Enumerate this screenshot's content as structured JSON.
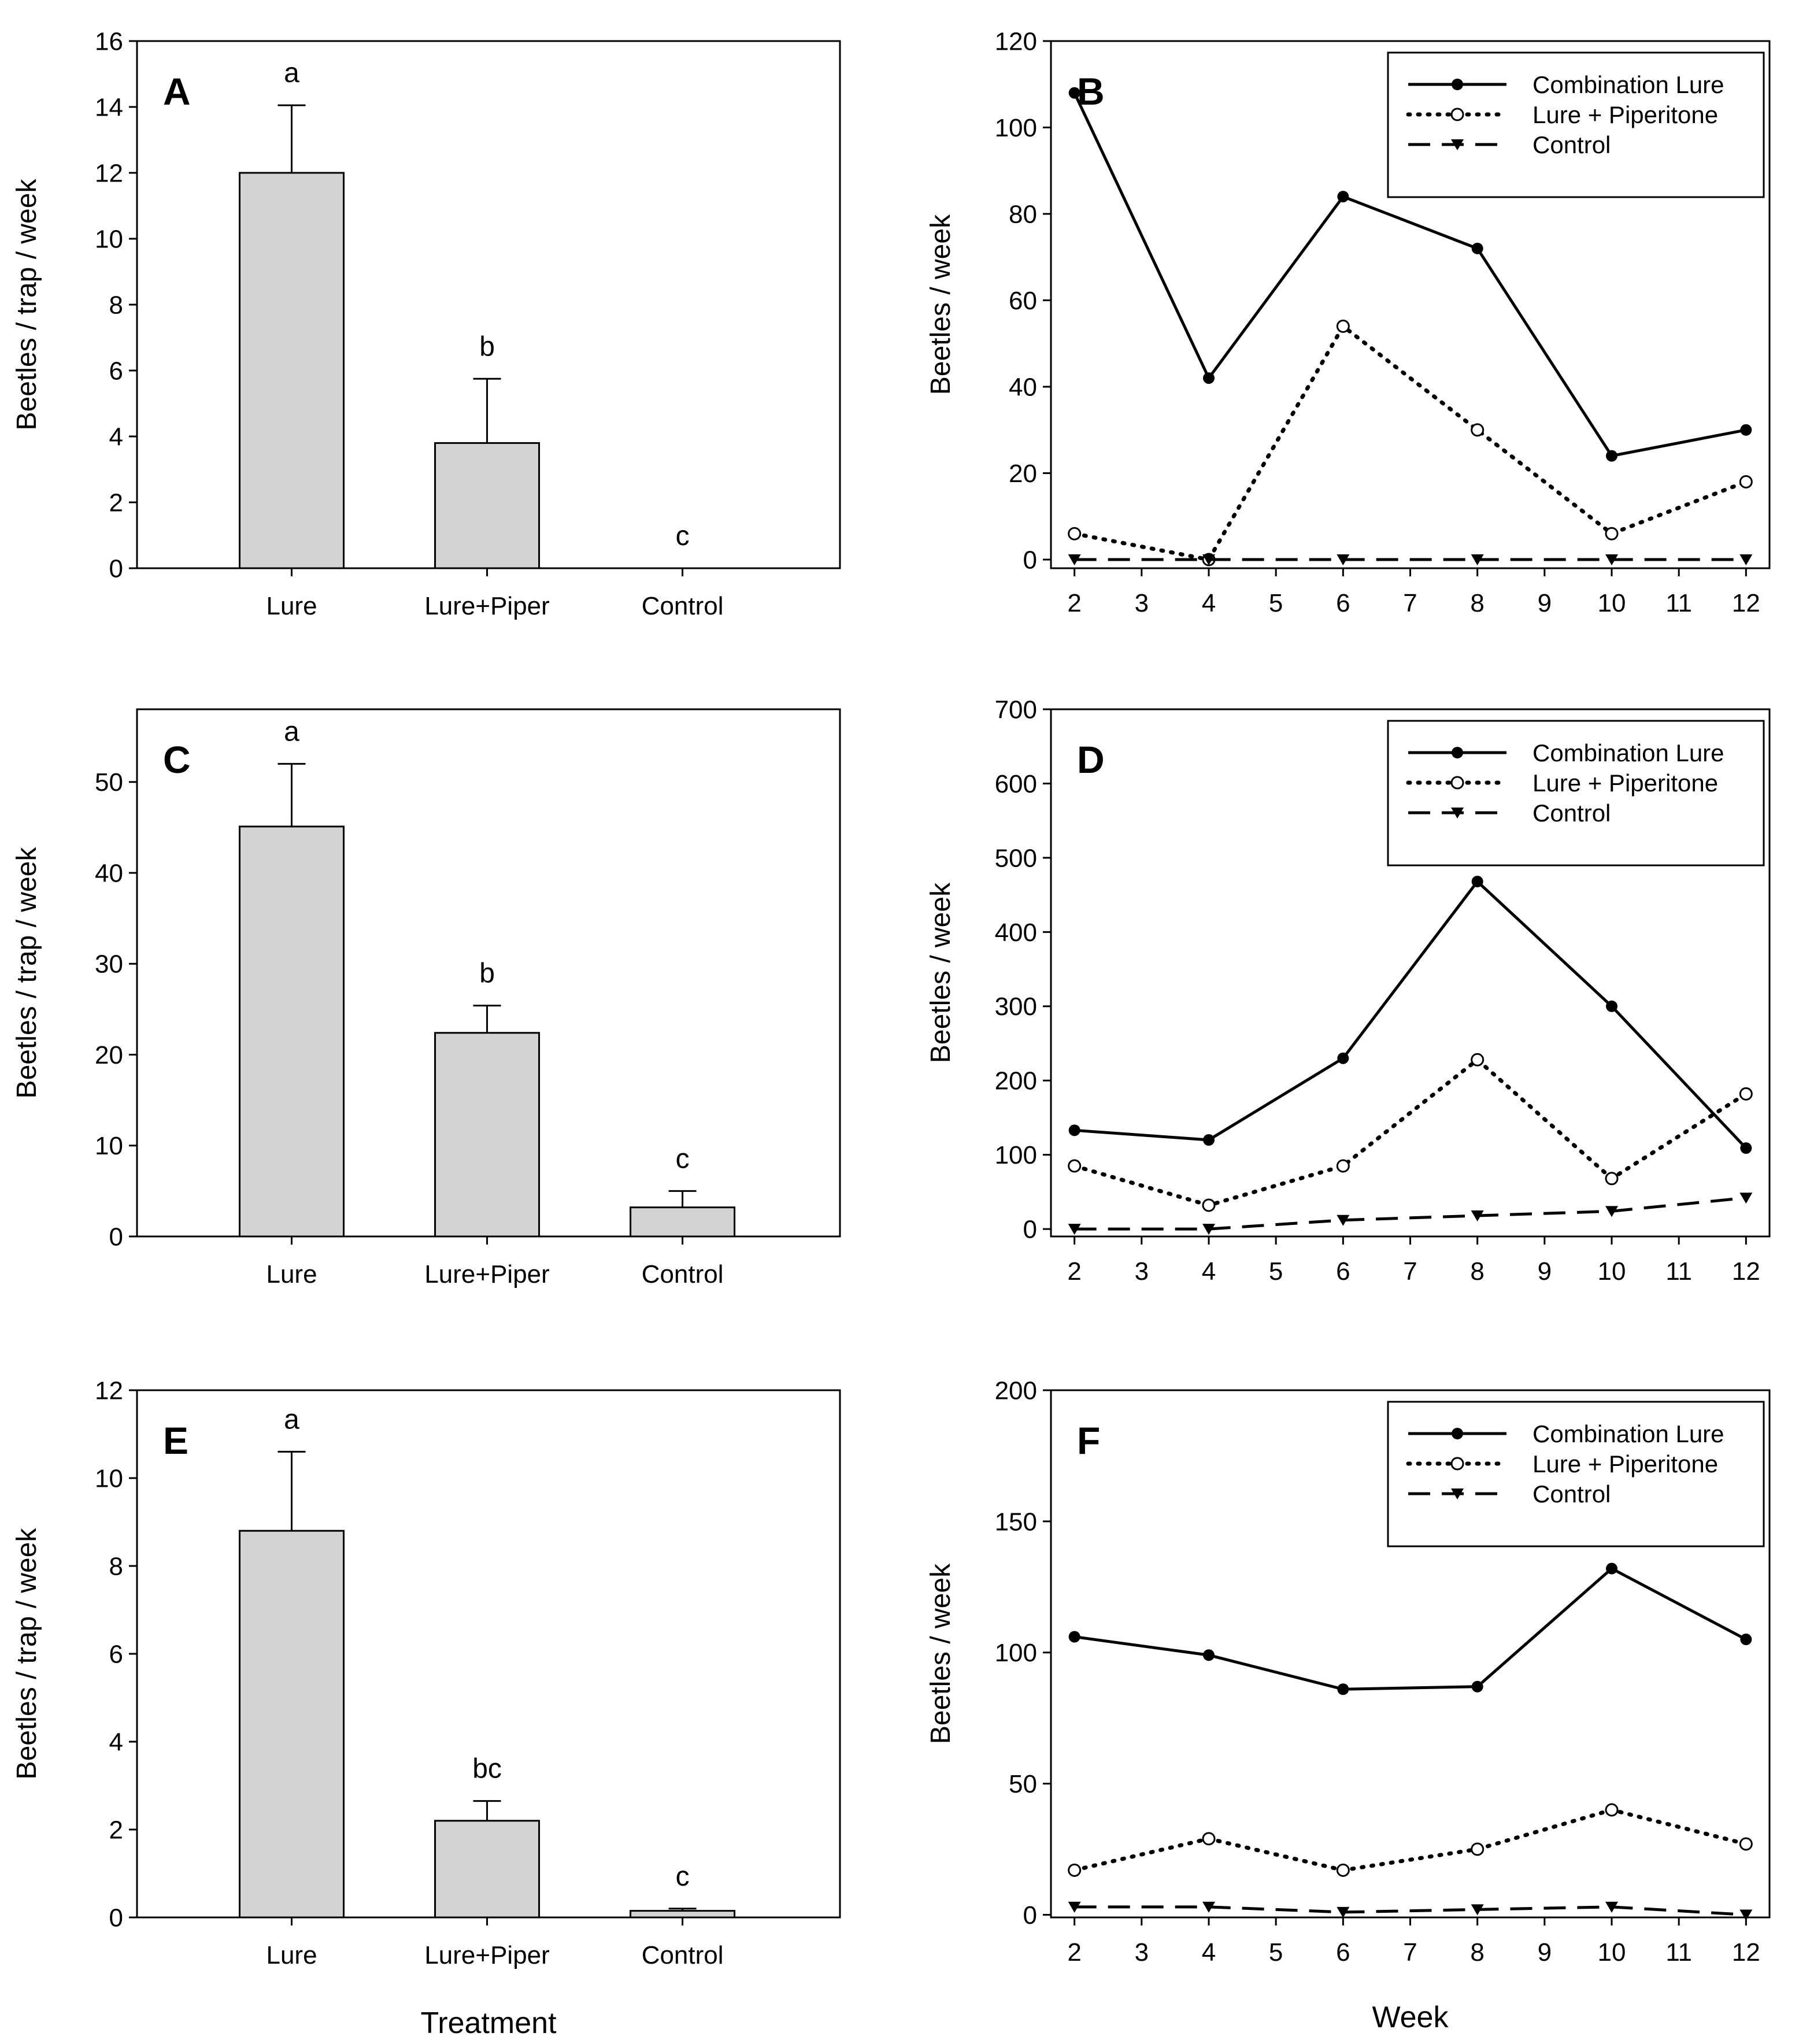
{
  "figure": {
    "shared": {
      "bar_categories": [
        "Lure",
        "Lure+Piper",
        "Control"
      ],
      "bar_xlabel": "Treatment",
      "bar_ylabel": "Beetles / trap / week",
      "line_xlabel": "Week",
      "line_ylabel": "Beetles / week",
      "legend": [
        "Combination Lure",
        "Lure + Piperitone",
        "Control"
      ],
      "bar_color": "#d3d3d3"
    }
  },
  "chart_data": [
    {
      "panel": "A",
      "type": "bar",
      "categories": [
        "Lure",
        "Lure+Piper",
        "Control"
      ],
      "values": [
        12.0,
        3.8,
        0.0
      ],
      "errors": [
        2.05,
        1.95,
        0.0
      ],
      "significance": [
        "a",
        "b",
        "c"
      ],
      "xlabel": "",
      "ylabel": "Beetles / trap / week",
      "ylim": [
        0,
        16
      ],
      "yticks": [
        0,
        2,
        4,
        6,
        8,
        10,
        12,
        14,
        16
      ]
    },
    {
      "panel": "B",
      "type": "line",
      "x": [
        2,
        4,
        6,
        8,
        10,
        12
      ],
      "xticks": [
        2,
        3,
        4,
        5,
        6,
        7,
        8,
        9,
        10,
        11,
        12
      ],
      "series": [
        {
          "name": "Combination Lure",
          "values": [
            108,
            42,
            84,
            72,
            24,
            30
          ]
        },
        {
          "name": "Lure + Piperitone",
          "values": [
            6,
            0,
            54,
            30,
            6,
            18
          ]
        },
        {
          "name": "Control",
          "values": [
            0,
            0,
            0,
            0,
            0,
            0
          ]
        }
      ],
      "xlabel": "",
      "ylabel": "Beetles / week",
      "ylim": [
        -2,
        120
      ],
      "yticks": [
        0,
        20,
        40,
        60,
        80,
        100,
        120
      ],
      "legend_position": "top-right"
    },
    {
      "panel": "C",
      "type": "bar",
      "categories": [
        "Lure",
        "Lure+Piper",
        "Control"
      ],
      "values": [
        45.1,
        22.4,
        3.2
      ],
      "errors": [
        6.9,
        3.0,
        1.8
      ],
      "significance": [
        "a",
        "b",
        "c"
      ],
      "xlabel": "",
      "ylabel": "Beetles / trap / week",
      "ylim": [
        0,
        58
      ],
      "yticks": [
        0,
        10,
        20,
        30,
        40,
        50
      ]
    },
    {
      "panel": "D",
      "type": "line",
      "x": [
        2,
        4,
        6,
        8,
        10,
        12
      ],
      "xticks": [
        2,
        3,
        4,
        5,
        6,
        7,
        8,
        9,
        10,
        11,
        12
      ],
      "series": [
        {
          "name": "Combination Lure",
          "values": [
            133,
            120,
            230,
            468,
            300,
            109
          ]
        },
        {
          "name": "Lure + Piperitone",
          "values": [
            85,
            32,
            85,
            228,
            68,
            182
          ]
        },
        {
          "name": "Control",
          "values": [
            0,
            0,
            12,
            18,
            24,
            42
          ]
        }
      ],
      "xlabel": "",
      "ylabel": "Beetles / week",
      "ylim": [
        -10,
        700
      ],
      "yticks": [
        0,
        100,
        200,
        300,
        400,
        500,
        600,
        700
      ],
      "legend_position": "top-right"
    },
    {
      "panel": "E",
      "type": "bar",
      "categories": [
        "Lure",
        "Lure+Piper",
        "Control"
      ],
      "values": [
        8.8,
        2.2,
        0.15
      ],
      "errors": [
        1.8,
        0.45,
        0.05
      ],
      "significance": [
        "a",
        "bc",
        "c"
      ],
      "xlabel": "Treatment",
      "ylabel": "Beetles / trap / week",
      "ylim": [
        0,
        12
      ],
      "yticks": [
        0,
        2,
        4,
        6,
        8,
        10,
        12
      ]
    },
    {
      "panel": "F",
      "type": "line",
      "x": [
        2,
        4,
        6,
        8,
        10,
        12
      ],
      "xticks": [
        2,
        3,
        4,
        5,
        6,
        7,
        8,
        9,
        10,
        11,
        12
      ],
      "series": [
        {
          "name": "Combination Lure",
          "values": [
            106,
            99,
            86,
            87,
            132,
            105
          ]
        },
        {
          "name": "Lure + Piperitone",
          "values": [
            17,
            29,
            17,
            25,
            40,
            27
          ]
        },
        {
          "name": "Control",
          "values": [
            3,
            3,
            1,
            2,
            3,
            0
          ]
        }
      ],
      "xlabel": "Week",
      "ylabel": "Beetles / week",
      "ylim": [
        -1,
        200
      ],
      "yticks": [
        0,
        50,
        100,
        150,
        200
      ],
      "legend_position": "top-right"
    }
  ]
}
